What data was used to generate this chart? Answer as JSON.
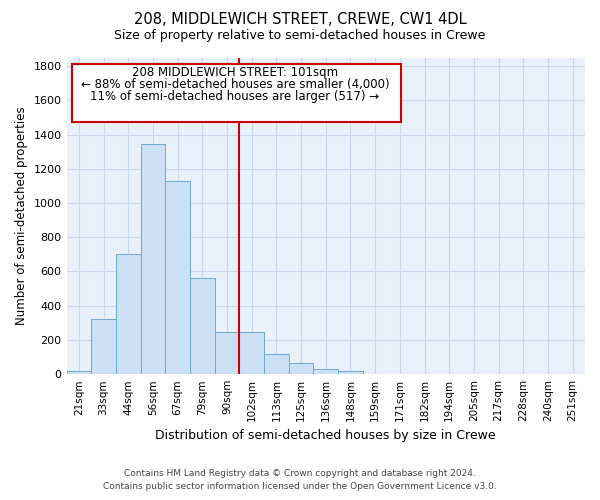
{
  "title": "208, MIDDLEWICH STREET, CREWE, CW1 4DL",
  "subtitle": "Size of property relative to semi-detached houses in Crewe",
  "xlabel": "Distribution of semi-detached houses by size in Crewe",
  "ylabel": "Number of semi-detached properties",
  "footer_line1": "Contains HM Land Registry data © Crown copyright and database right 2024.",
  "footer_line2": "Contains public sector information licensed under the Open Government Licence v3.0.",
  "annotation_line1": "208 MIDDLEWICH STREET: 101sqm",
  "annotation_line2": "← 88% of semi-detached houses are smaller (4,000)",
  "annotation_line3": "11% of semi-detached houses are larger (517) →",
  "bar_categories": [
    "21sqm",
    "33sqm",
    "44sqm",
    "56sqm",
    "67sqm",
    "79sqm",
    "90sqm",
    "102sqm",
    "113sqm",
    "125sqm",
    "136sqm",
    "148sqm",
    "159sqm",
    "171sqm",
    "182sqm",
    "194sqm",
    "205sqm",
    "217sqm",
    "228sqm",
    "240sqm",
    "251sqm"
  ],
  "bar_values": [
    20,
    325,
    700,
    1345,
    1130,
    560,
    245,
    245,
    120,
    65,
    30,
    20,
    0,
    0,
    0,
    0,
    0,
    0,
    0,
    0,
    0
  ],
  "bar_color": "#cce0f5",
  "bar_edge_color": "#6aaad4",
  "grid_color": "#c8d8eb",
  "background_color": "#e8f0fa",
  "vline_x": 6.5,
  "vline_color": "#cc0000",
  "ylim": [
    0,
    1850
  ],
  "yticks": [
    0,
    200,
    400,
    600,
    800,
    1000,
    1200,
    1400,
    1600,
    1800
  ]
}
